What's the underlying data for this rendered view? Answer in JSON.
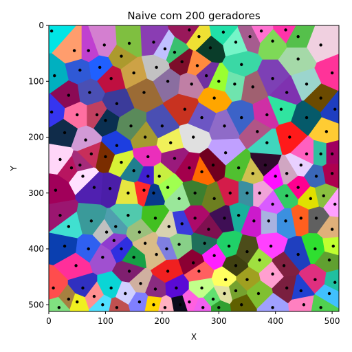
{
  "chart_data": {
    "type": "scatter",
    "title": "Naive com 200 geradores",
    "xlabel": "X",
    "ylabel": "Y",
    "xlim": [
      0,
      512
    ],
    "ylim": [
      512,
      0
    ],
    "y_inverted": true,
    "xticks": [
      0,
      100,
      200,
      300,
      400,
      500
    ],
    "yticks": [
      0,
      100,
      200,
      300,
      400,
      500
    ],
    "grid": false,
    "legend": "none",
    "cells_colored_by": "nearest generator (Voronoi)",
    "point_color": "#000000",
    "generators": [
      [
        5,
        10,
        "#00e5e5"
      ],
      [
        70,
        45,
        "#c040d0"
      ],
      [
        98,
        35,
        "#d47fd0"
      ],
      [
        128,
        55,
        "#ac9a2d"
      ],
      [
        142,
        32,
        "#7fbf40"
      ],
      [
        185,
        30,
        "#8a3db3"
      ],
      [
        205,
        42,
        "#c0c0ff"
      ],
      [
        222,
        48,
        "#39c06f"
      ],
      [
        248,
        8,
        "#99185a"
      ],
      [
        265,
        20,
        "#efe033"
      ],
      [
        285,
        40,
        "#0a3d2a"
      ],
      [
        308,
        12,
        "#20e0a8"
      ],
      [
        330,
        30,
        "#75f5c8"
      ],
      [
        355,
        20,
        "#a65c8f"
      ],
      [
        375,
        10,
        "#ff70d0"
      ],
      [
        395,
        28,
        "#7ed957"
      ],
      [
        418,
        8,
        "#ff33aa"
      ],
      [
        440,
        20,
        "#55c04b"
      ],
      [
        480,
        35,
        "#f0d0e0"
      ],
      [
        45,
        45,
        "#ff9d6d"
      ],
      [
        10,
        90,
        "#00b0c0"
      ],
      [
        35,
        125,
        "#8b0a55"
      ],
      [
        55,
        80,
        "#2f59d6"
      ],
      [
        72,
        120,
        "#4a4fb4"
      ],
      [
        90,
        75,
        "#2060ff"
      ],
      [
        110,
        95,
        "#bf1040"
      ],
      [
        120,
        140,
        "#3b3b9a"
      ],
      [
        150,
        85,
        "#cda246"
      ],
      [
        168,
        120,
        "#9b6b35"
      ],
      [
        190,
        75,
        "#c2c2c2"
      ],
      [
        210,
        100,
        "#8a6ea0"
      ],
      [
        235,
        65,
        "#7d0d2a"
      ],
      [
        252,
        105,
        "#c07fa5"
      ],
      [
        262,
        72,
        "#ff8a3d"
      ],
      [
        278,
        90,
        "#7030a0"
      ],
      [
        300,
        100,
        "#9aff30"
      ],
      [
        328,
        105,
        "#6fe4ae"
      ],
      [
        340,
        70,
        "#3ad8a5"
      ],
      [
        360,
        110,
        "#a06070"
      ],
      [
        395,
        95,
        "#7d40b5"
      ],
      [
        420,
        120,
        "#7f32b0"
      ],
      [
        455,
        105,
        "#9bd5cd"
      ],
      [
        480,
        130,
        "#6b4a00"
      ],
      [
        500,
        85,
        "#ff3399"
      ],
      [
        440,
        60,
        "#a5d9a8"
      ],
      [
        5,
        155,
        "#3535f0"
      ],
      [
        28,
        192,
        "#102c4a"
      ],
      [
        50,
        160,
        "#ff6fa1"
      ],
      [
        65,
        205,
        "#d29ad6"
      ],
      [
        85,
        160,
        "#c04060"
      ],
      [
        100,
        170,
        "#0a2f50"
      ],
      [
        120,
        215,
        "#1d3ee0"
      ],
      [
        145,
        180,
        "#5a8a5a"
      ],
      [
        170,
        200,
        "#a59a30"
      ],
      [
        200,
        180,
        "#4a4fb3"
      ],
      [
        215,
        210,
        "#f0f05a"
      ],
      [
        240,
        150,
        "#c83220"
      ],
      [
        255,
        200,
        "#e0e0e0"
      ],
      [
        270,
        165,
        "#6c56c4"
      ],
      [
        292,
        130,
        "#ffa600"
      ],
      [
        310,
        180,
        "#8f6bc8"
      ],
      [
        340,
        165,
        "#3c63c8"
      ],
      [
        368,
        190,
        "#b05586"
      ],
      [
        385,
        160,
        "#cf2fa5"
      ],
      [
        410,
        150,
        "#30e4a0"
      ],
      [
        425,
        200,
        "#ff1a1a"
      ],
      [
        455,
        165,
        "#055a6a"
      ],
      [
        490,
        190,
        "#ffcc33"
      ],
      [
        505,
        150,
        "#1e3ec0"
      ],
      [
        385,
        210,
        "#40d6bd"
      ],
      [
        20,
        240,
        "#ffd6f8"
      ],
      [
        40,
        255,
        "#b81560"
      ],
      [
        55,
        250,
        "#a52b7a"
      ],
      [
        75,
        230,
        "#c82e5a"
      ],
      [
        100,
        235,
        "#7a2d00"
      ],
      [
        128,
        245,
        "#d8f235"
      ],
      [
        150,
        260,
        "#1f7f8f"
      ],
      [
        175,
        235,
        "#eb2ebb"
      ],
      [
        195,
        270,
        "#c8ef41"
      ],
      [
        222,
        238,
        "#9a1a7c"
      ],
      [
        248,
        255,
        "#a3004c"
      ],
      [
        270,
        262,
        "#ff6a00"
      ],
      [
        290,
        250,
        "#700020"
      ],
      [
        312,
        228,
        "#c0a0ff"
      ],
      [
        335,
        255,
        "#50c030"
      ],
      [
        360,
        265,
        "#d0c050"
      ],
      [
        382,
        250,
        "#300a2c"
      ],
      [
        400,
        270,
        "#ff10ff"
      ],
      [
        420,
        265,
        "#d0a6c2"
      ],
      [
        445,
        250,
        "#e8d0ff"
      ],
      [
        472,
        270,
        "#3a67b8"
      ],
      [
        500,
        265,
        "#ad004f"
      ],
      [
        12,
        295,
        "#a1005a"
      ],
      [
        80,
        290,
        "#5020b0"
      ],
      [
        108,
        292,
        "#4b1ea8"
      ],
      [
        140,
        300,
        "#e6e640"
      ],
      [
        168,
        295,
        "#ff2a2a"
      ],
      [
        185,
        300,
        "#083a8a"
      ],
      [
        210,
        290,
        "#a0ff50"
      ],
      [
        230,
        310,
        "#9ae79a"
      ],
      [
        258,
        300,
        "#3c7f2f"
      ],
      [
        292,
        310,
        "#6d7f20"
      ],
      [
        320,
        300,
        "#d41c4a"
      ],
      [
        350,
        300,
        "#3b8fa0"
      ],
      [
        372,
        300,
        "#f0a3d8"
      ],
      [
        395,
        320,
        "#d95cff"
      ],
      [
        420,
        305,
        "#33cc66"
      ],
      [
        440,
        290,
        "#ff0090"
      ],
      [
        462,
        310,
        "#e0e000"
      ],
      [
        485,
        305,
        "#8ac040"
      ],
      [
        505,
        320,
        "#ffa0ff"
      ],
      [
        20,
        340,
        "#9b1670"
      ],
      [
        35,
        360,
        "#40e0d0"
      ],
      [
        75,
        350,
        "#3a9a9a"
      ],
      [
        102,
        370,
        "#c0c0c0"
      ],
      [
        118,
        360,
        "#4f9fae"
      ],
      [
        140,
        340,
        "#51c9ad"
      ],
      [
        160,
        370,
        "#9bc07c"
      ],
      [
        188,
        345,
        "#42c020"
      ],
      [
        212,
        360,
        "#d8d2b0"
      ],
      [
        235,
        355,
        "#3b3bdc"
      ],
      [
        258,
        345,
        "#ad0a6a"
      ],
      [
        282,
        365,
        "#7f1050"
      ],
      [
        310,
        345,
        "#3f0f55"
      ],
      [
        335,
        340,
        "#18b09b"
      ],
      [
        362,
        350,
        "#cc1acc"
      ],
      [
        388,
        350,
        "#a8b2e0"
      ],
      [
        418,
        350,
        "#3b90e0"
      ],
      [
        445,
        345,
        "#ff5f1f"
      ],
      [
        472,
        345,
        "#606060"
      ],
      [
        500,
        365,
        "#e0b07a"
      ],
      [
        28,
        395,
        "#0a3fb0"
      ],
      [
        48,
        430,
        "#ff2f9a"
      ],
      [
        70,
        400,
        "#2f60f0"
      ],
      [
        95,
        415,
        "#a050d0"
      ],
      [
        115,
        385,
        "#8f3ccf"
      ],
      [
        128,
        400,
        "#2f2fe0"
      ],
      [
        150,
        415,
        "#16a046"
      ],
      [
        170,
        390,
        "#d8bc88"
      ],
      [
        190,
        410,
        "#d8bc88"
      ],
      [
        208,
        400,
        "#7f7fe0"
      ],
      [
        230,
        392,
        "#88d088"
      ],
      [
        255,
        425,
        "#8b0033"
      ],
      [
        275,
        390,
        "#1f6f5a"
      ],
      [
        292,
        412,
        "#ff20ff"
      ],
      [
        318,
        395,
        "#20d068"
      ],
      [
        330,
        430,
        "#3f3f10"
      ],
      [
        350,
        405,
        "#4c4c1a"
      ],
      [
        372,
        420,
        "#a0e040"
      ],
      [
        392,
        395,
        "#ff40ff"
      ],
      [
        415,
        430,
        "#802040"
      ],
      [
        440,
        410,
        "#1f3fbf"
      ],
      [
        470,
        400,
        "#2fdf30"
      ],
      [
        495,
        420,
        "#60a030"
      ],
      [
        502,
        395,
        "#c0ff30"
      ],
      [
        8,
        470,
        "#ff4d4d"
      ],
      [
        35,
        490,
        "#a68040"
      ],
      [
        50,
        495,
        "#f0f020"
      ],
      [
        80,
        485,
        "#ff9090"
      ],
      [
        110,
        470,
        "#0ad5d5"
      ],
      [
        142,
        440,
        "#7f1f6f"
      ],
      [
        162,
        462,
        "#d0b0a0"
      ],
      [
        188,
        472,
        "#8a2b80"
      ],
      [
        210,
        440,
        "#f02020"
      ],
      [
        225,
        470,
        "#5a0ad5"
      ],
      [
        248,
        495,
        "#ff60e0"
      ],
      [
        270,
        470,
        "#c2ff8a"
      ],
      [
        290,
        490,
        "#60e070"
      ],
      [
        312,
        455,
        "#ffff60"
      ],
      [
        330,
        475,
        "#76a22e"
      ],
      [
        350,
        455,
        "#a0a020"
      ],
      [
        370,
        480,
        "#80c030"
      ],
      [
        395,
        445,
        "#ff9fd0"
      ],
      [
        420,
        470,
        "#7a1f3f"
      ],
      [
        445,
        475,
        "#2040d0"
      ],
      [
        470,
        455,
        "#df2f7f"
      ],
      [
        495,
        480,
        "#40c0ff"
      ],
      [
        505,
        460,
        "#20c0a0"
      ],
      [
        160,
        495,
        "#7f7fff"
      ],
      [
        135,
        480,
        "#d0d0ff"
      ],
      [
        232,
        500,
        "#0a0a1a"
      ],
      [
        205,
        505,
        "#ffb0c0"
      ],
      [
        185,
        500,
        "#ffd700"
      ],
      [
        120,
        505,
        "#c05050"
      ],
      [
        95,
        500,
        "#50e0ff"
      ],
      [
        60,
        470,
        "#3030c0"
      ],
      [
        18,
        505,
        "#80e080"
      ],
      [
        450,
        500,
        "#ff80c0"
      ],
      [
        480,
        505,
        "#50d050"
      ],
      [
        395,
        505,
        "#a0a0ff"
      ],
      [
        340,
        500,
        "#606000"
      ],
      [
        300,
        505,
        "#30a030"
      ],
      [
        272,
        505,
        "#f060f0"
      ],
      [
        455,
        230,
        "#ff60c0"
      ],
      [
        480,
        230,
        "#30c0a0"
      ],
      [
        500,
        230,
        "#a00060"
      ],
      [
        310,
        480,
        "#e0e0a0"
      ],
      [
        265,
        440,
        "#ff6060"
      ],
      [
        175,
        270,
        "#4020d0"
      ],
      [
        60,
        270,
        "#ffe0ff"
      ]
    ]
  }
}
